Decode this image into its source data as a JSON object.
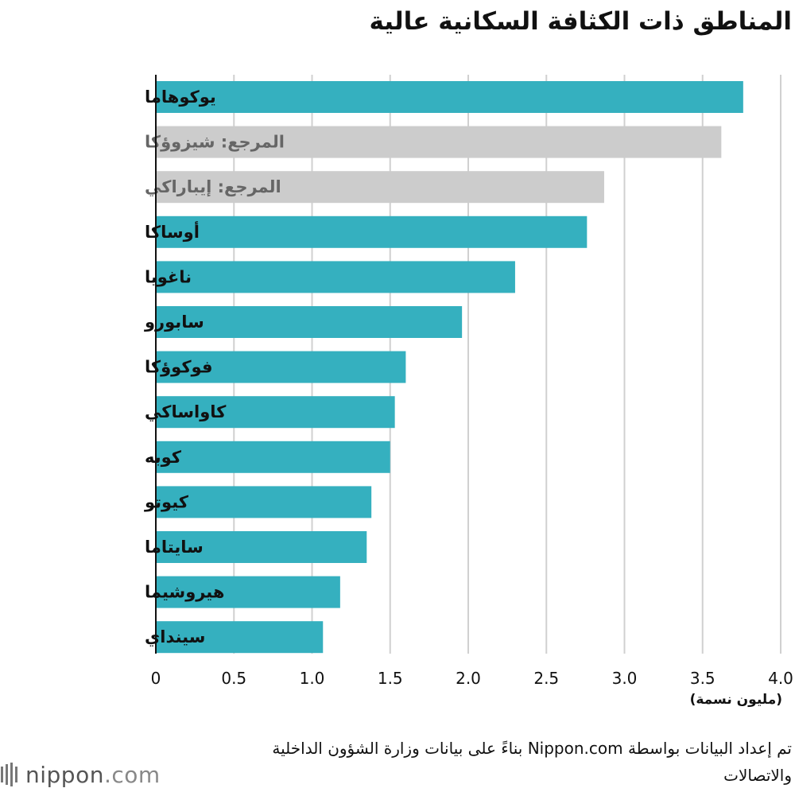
{
  "title": "المناطق ذات الكثافة السكانية عالية",
  "unit": "(مليون نسمة)",
  "source": "تم إعداد البيانات بواسطة Nippon.com بناءً على بيانات وزارة الشؤون الداخلية والاتصالات",
  "logo": {
    "name": "nippon",
    "suffix": ".com"
  },
  "colors": {
    "main": "#35b0bf",
    "reference": "#cccccc",
    "reference_label": "#666666",
    "grid": "#d0d0d0"
  },
  "chart_data": {
    "type": "bar",
    "orientation": "horizontal",
    "title": "المناطق ذات الكثافة السكانية عالية",
    "xlabel": "(مليون نسمة)",
    "xlim": [
      0,
      4.0
    ],
    "xticks": [
      "0",
      "0.5",
      "1.0",
      "1.5",
      "2.0",
      "2.5",
      "3.0",
      "3.5",
      "4.0"
    ],
    "grid": true,
    "categories": [
      "يوكوهاما",
      "المرجع: شيزوؤكا",
      "المرجع: إيباراكي",
      "أوساكا",
      "ناغويا",
      "سابورو",
      "فوكوؤكا",
      "كاواساكي",
      "كوبه",
      "كيوتو",
      "سايتاما",
      "هيروشيما",
      "سينداي"
    ],
    "values": [
      3.76,
      3.62,
      2.87,
      2.76,
      2.3,
      1.96,
      1.6,
      1.53,
      1.5,
      1.38,
      1.35,
      1.18,
      1.07
    ],
    "reference": [
      false,
      true,
      true,
      false,
      false,
      false,
      false,
      false,
      false,
      false,
      false,
      false,
      false
    ]
  }
}
